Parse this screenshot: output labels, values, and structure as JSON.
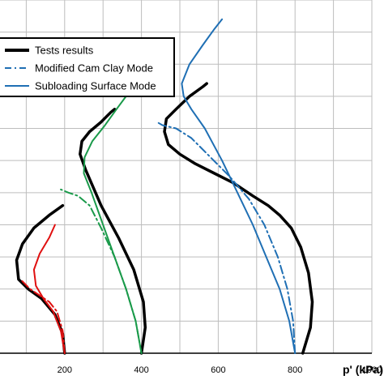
{
  "chart_data": {
    "type": "line",
    "title": "",
    "xlabel": "p' (kPa)",
    "ylabel": "",
    "xlim": [
      0,
      1000
    ],
    "xticks": [
      200,
      400,
      600,
      800,
      1000
    ],
    "ylim": [
      0,
      11
    ],
    "grid": true,
    "legend": {
      "position": "top-left",
      "entries": [
        {
          "label": "Tests results",
          "color": "#000000",
          "style": "solid"
        },
        {
          "label": "Modified  Cam Clay Mode",
          "color": "#1f6fb4",
          "style": "dashdot"
        },
        {
          "label": "Subloading Surface Mode",
          "color": "#1f6fb4",
          "style": "solid"
        }
      ]
    },
    "series": [
      {
        "group": "test-200",
        "role": "Tests results",
        "color": "#000000",
        "style": "solid",
        "width": 3.5,
        "points": [
          [
            200,
            0
          ],
          [
            195,
            0.6
          ],
          [
            175,
            1.2
          ],
          [
            140,
            1.7
          ],
          [
            105,
            2.0
          ],
          [
            80,
            2.3
          ],
          [
            75,
            2.9
          ],
          [
            90,
            3.4
          ],
          [
            120,
            3.9
          ],
          [
            160,
            4.3
          ],
          [
            195,
            4.6
          ]
        ]
      },
      {
        "group": "mcc-200",
        "role": "Modified  Cam Clay Mode",
        "color": "#e01010",
        "style": "dashdot",
        "width": 2,
        "points": [
          [
            200,
            0
          ],
          [
            195,
            0.7
          ],
          [
            180,
            1.3
          ],
          [
            160,
            1.6
          ],
          [
            135,
            1.8
          ],
          [
            110,
            2.0
          ],
          [
            85,
            2.3
          ]
        ]
      },
      {
        "group": "sub-200",
        "role": "Subloading Surface Mode",
        "color": "#e01010",
        "style": "solid",
        "width": 2,
        "points": [
          [
            200,
            0
          ],
          [
            190,
            0.7
          ],
          [
            170,
            1.3
          ],
          [
            145,
            1.7
          ],
          [
            125,
            2.1
          ],
          [
            120,
            2.6
          ],
          [
            135,
            3.1
          ],
          [
            160,
            3.6
          ],
          [
            175,
            4.0
          ]
        ]
      },
      {
        "group": "test-400",
        "role": "Tests results",
        "color": "#000000",
        "style": "solid",
        "width": 3.5,
        "points": [
          [
            400,
            0
          ],
          [
            410,
            0.8
          ],
          [
            405,
            1.6
          ],
          [
            380,
            2.6
          ],
          [
            340,
            3.6
          ],
          [
            295,
            4.6
          ],
          [
            255,
            5.7
          ],
          [
            240,
            6.2
          ],
          [
            245,
            6.6
          ],
          [
            265,
            6.9
          ],
          [
            295,
            7.2
          ],
          [
            320,
            7.5
          ],
          [
            330,
            7.6
          ]
        ]
      },
      {
        "group": "mcc-400",
        "role": "Modified  Cam Clay Mode",
        "color": "#1a9a4a",
        "style": "dashdot",
        "width": 2,
        "points": [
          [
            400,
            0
          ],
          [
            385,
            1.0
          ],
          [
            360,
            2.0
          ],
          [
            330,
            3.0
          ],
          [
            295,
            3.9
          ],
          [
            265,
            4.6
          ],
          [
            235,
            4.9
          ],
          [
            210,
            5.0
          ],
          [
            190,
            5.1
          ]
        ]
      },
      {
        "group": "sub-400",
        "role": "Subloading Surface Mode",
        "color": "#1a9a4a",
        "style": "solid",
        "width": 2,
        "points": [
          [
            400,
            0
          ],
          [
            385,
            1.0
          ],
          [
            360,
            2.0
          ],
          [
            330,
            3.0
          ],
          [
            300,
            4.0
          ],
          [
            270,
            5.0
          ],
          [
            250,
            5.6
          ],
          [
            252,
            6.1
          ],
          [
            272,
            6.6
          ],
          [
            305,
            7.1
          ],
          [
            335,
            7.6
          ],
          [
            360,
            8.0
          ]
        ]
      },
      {
        "group": "test-800",
        "role": "Tests results",
        "color": "#000000",
        "style": "solid",
        "width": 3.5,
        "points": [
          [
            820,
            0
          ],
          [
            840,
            0.8
          ],
          [
            845,
            1.6
          ],
          [
            835,
            2.5
          ],
          [
            815,
            3.3
          ],
          [
            790,
            3.9
          ],
          [
            760,
            4.3
          ],
          [
            730,
            4.6
          ],
          [
            690,
            4.9
          ],
          [
            640,
            5.3
          ],
          [
            590,
            5.6
          ],
          [
            540,
            5.9
          ],
          [
            500,
            6.2
          ],
          [
            470,
            6.5
          ],
          [
            460,
            6.9
          ],
          [
            465,
            7.3
          ],
          [
            490,
            7.6
          ],
          [
            525,
            8.0
          ],
          [
            560,
            8.3
          ],
          [
            570,
            8.4
          ]
        ]
      },
      {
        "group": "mcc-800",
        "role": "Modified  Cam Clay Mode",
        "color": "#1f6fb4",
        "style": "dashdot",
        "width": 2,
        "points": [
          [
            800,
            0
          ],
          [
            795,
            1.0
          ],
          [
            780,
            2.0
          ],
          [
            755,
            3.0
          ],
          [
            720,
            4.0
          ],
          [
            680,
            4.8
          ],
          [
            630,
            5.5
          ],
          [
            580,
            6.1
          ],
          [
            530,
            6.7
          ],
          [
            490,
            7.0
          ],
          [
            455,
            7.1
          ],
          [
            440,
            7.2
          ]
        ]
      },
      {
        "group": "sub-800",
        "role": "Subloading Surface Mode",
        "color": "#1f6fb4",
        "style": "solid",
        "width": 2,
        "points": [
          [
            800,
            0
          ],
          [
            785,
            1.0
          ],
          [
            760,
            2.0
          ],
          [
            725,
            3.0
          ],
          [
            690,
            4.0
          ],
          [
            650,
            5.0
          ],
          [
            610,
            6.0
          ],
          [
            565,
            7.0
          ],
          [
            530,
            7.6
          ],
          [
            510,
            8.0
          ],
          [
            505,
            8.4
          ],
          [
            525,
            9.0
          ],
          [
            560,
            9.6
          ],
          [
            590,
            10.1
          ],
          [
            610,
            10.4
          ]
        ]
      }
    ]
  }
}
